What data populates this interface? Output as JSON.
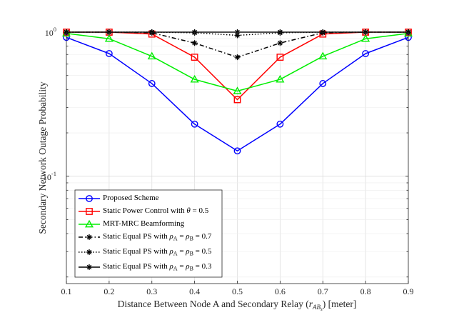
{
  "chart_data": {
    "type": "line",
    "xlabel": "Distance Between Node A and Secondary Relay (r_{AB_s}) [meter]",
    "xlabel_parts": {
      "prefix": "Distance Between Node A and Secondary Relay (",
      "var": "r",
      "sub": "AB",
      "subsub": "s",
      "suffix": ") [meter]"
    },
    "ylabel": "Secondary Network Outage Probability",
    "x_scale": "linear",
    "y_scale": "log",
    "xlim": [
      0.1,
      0.9
    ],
    "ylim": [
      0.018,
      1.0
    ],
    "x_ticks": [
      "0.1",
      "0.2",
      "0.3",
      "0.4",
      "0.5",
      "0.6",
      "0.7",
      "0.8",
      "0.9"
    ],
    "y_tick_labels": [
      {
        "value": 1.0,
        "base": "10",
        "exp": "0"
      },
      {
        "value": 0.1,
        "base": "10",
        "exp": "-1"
      }
    ],
    "grid": true,
    "legend_position": "bottom-left",
    "x": [
      0.1,
      0.2,
      0.3,
      0.4,
      0.5,
      0.6,
      0.7,
      0.8,
      0.9
    ],
    "series": [
      {
        "name": "Proposed Scheme",
        "color": "#0000ff",
        "marker": "circle",
        "line_style": "solid",
        "values": [
          0.92,
          0.71,
          0.44,
          0.23,
          0.15,
          0.23,
          0.44,
          0.71,
          0.92
        ]
      },
      {
        "name": "Static Power Control with θ = 0.5",
        "legend_parts": {
          "prefix": "Static Power Control with ",
          "var": "θ",
          "suffix": " = 0.5"
        },
        "color": "#ff0000",
        "marker": "square",
        "line_style": "solid",
        "values": [
          1.0,
          1.0,
          0.97,
          0.67,
          0.34,
          0.67,
          0.97,
          1.0,
          1.0
        ]
      },
      {
        "name": "MRT-MRC Beamforming",
        "color": "#00ee00",
        "marker": "triangle",
        "line_style": "solid",
        "values": [
          0.98,
          0.9,
          0.68,
          0.47,
          0.39,
          0.47,
          0.68,
          0.9,
          0.98
        ]
      },
      {
        "name": "Static Equal PS with ρA = ρB = 0.7",
        "legend_parts": {
          "prefix": "Static Equal PS with ",
          "rho": "ρ",
          "sub1": "A",
          "eq": " = ",
          "sub2": "B",
          "value": " = 0.7"
        },
        "color": "#000000",
        "marker": "star",
        "line_style": "dashdot",
        "values": [
          1.0,
          1.0,
          0.99,
          0.84,
          0.67,
          0.84,
          0.99,
          1.0,
          1.0
        ]
      },
      {
        "name": "Static Equal PS with ρA = ρB = 0.5",
        "legend_parts": {
          "prefix": "Static Equal PS with ",
          "rho": "ρ",
          "sub1": "A",
          "eq": " = ",
          "sub2": "B",
          "value": " = 0.5"
        },
        "color": "#000000",
        "marker": "star",
        "line_style": "dotted",
        "values": [
          1.0,
          1.0,
          1.0,
          0.99,
          0.95,
          0.99,
          1.0,
          1.0,
          1.0
        ]
      },
      {
        "name": "Static Equal PS with ρA = ρB = 0.3",
        "legend_parts": {
          "prefix": "Static Equal PS with ",
          "rho": "ρ",
          "sub1": "A",
          "eq": " = ",
          "sub2": "B",
          "value": " = 0.3"
        },
        "color": "#000000",
        "marker": "star",
        "line_style": "solid",
        "values": [
          1.0,
          1.0,
          1.0,
          1.0,
          1.0,
          1.0,
          1.0,
          1.0,
          1.0
        ]
      }
    ]
  }
}
